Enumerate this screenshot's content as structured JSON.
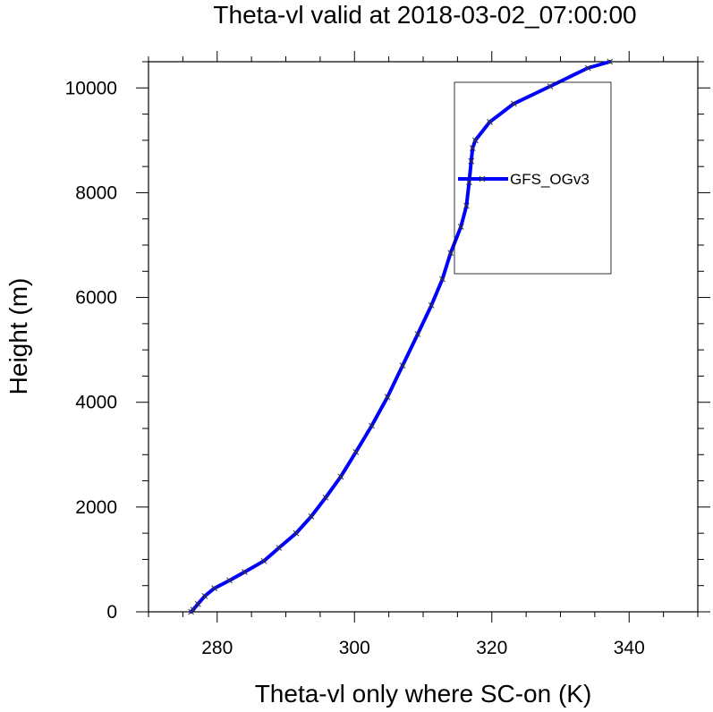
{
  "chart_data": {
    "type": "line",
    "title": "Theta-vl valid at 2018-03-02_07:00:00",
    "xlabel": "Theta-vl only where SC-on (K)",
    "ylabel": "Height (m)",
    "xlim": [
      270,
      350
    ],
    "ylim": [
      0,
      10500
    ],
    "xticks": [
      280,
      300,
      320,
      340
    ],
    "yticks": [
      0,
      2000,
      4000,
      6000,
      8000,
      10000
    ],
    "xtick_labels": [
      "280",
      "300",
      "320",
      "340"
    ],
    "ytick_labels": [
      "0",
      "2000",
      "4000",
      "6000",
      "8000",
      "10000"
    ],
    "grid": false,
    "legend_position": "top-right, inside plot",
    "series": [
      {
        "name": "GFS_OGv3",
        "color": "#0000ff",
        "marker": "x",
        "x": [
          276.2,
          276.5,
          277.2,
          278.2,
          279.6,
          281.8,
          284.0,
          286.8,
          289.0,
          291.5,
          293.7,
          295.8,
          298.0,
          300.2,
          302.5,
          304.8,
          307.0,
          309.2,
          311.2,
          312.8,
          314.0,
          315.5,
          316.3,
          316.7,
          317.0,
          317.2,
          317.6,
          319.7,
          323.2,
          328.5,
          334.0,
          337.2
        ],
        "y": [
          0,
          40,
          150,
          300,
          450,
          600,
          760,
          970,
          1220,
          1500,
          1820,
          2180,
          2580,
          3050,
          3550,
          4100,
          4700,
          5300,
          5850,
          6350,
          6850,
          7350,
          7750,
          8200,
          8600,
          8850,
          9000,
          9350,
          9700,
          10030,
          10380,
          10500
        ]
      }
    ]
  }
}
